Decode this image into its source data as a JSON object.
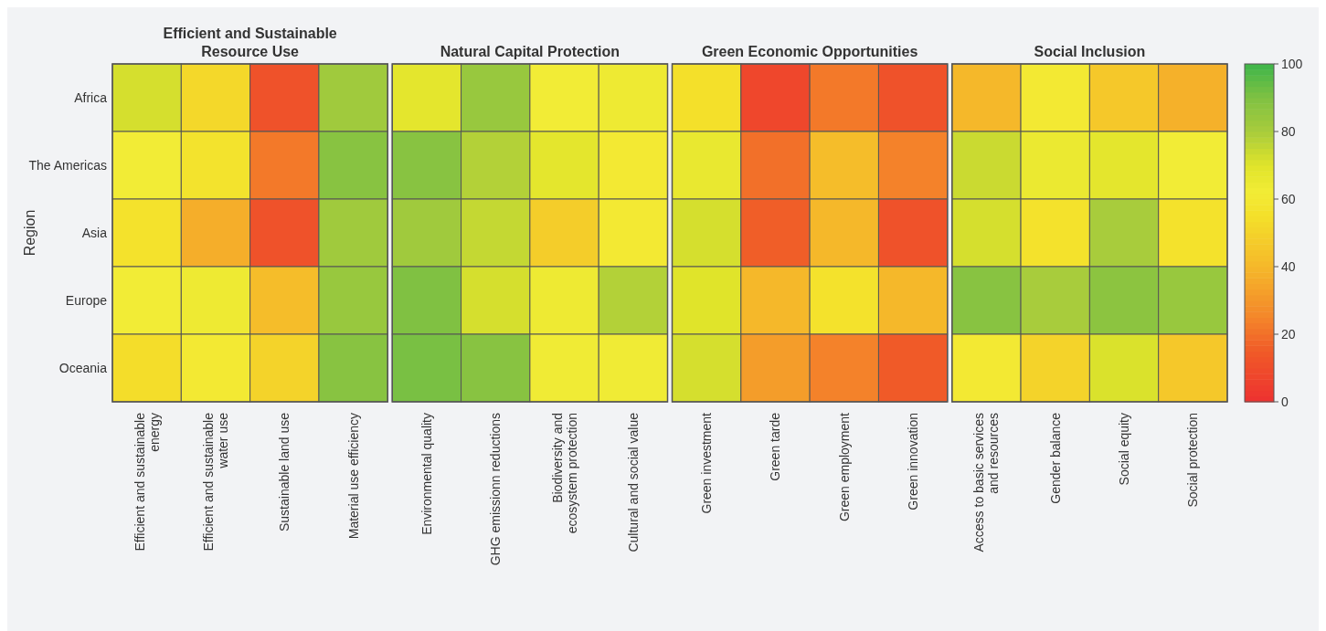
{
  "chart_data": {
    "type": "heatmap",
    "ylabel": "Region",
    "annotations": [
      "Efficient and Sustainable Resource Use",
      "Natural Capital Protection",
      "Green Economic Opportunities",
      "Social Inclusion"
    ],
    "categories": [
      "Efficient and sustainable energy",
      "Efficient and sustainable water use",
      "Sustainable land use",
      "Material use efficiency",
      "Environmental quality",
      "GHG emissionn reductions",
      "Biodiversity and ecosystem protection",
      "Cultural and social value",
      "Green investment",
      "Green tarde",
      "Green employment",
      "Green innovation",
      "Access to basic services and resources",
      "Gender balance",
      "Social equity",
      "Social protection"
    ],
    "y_categories": [
      "Africa",
      "The Americas",
      "Asia",
      "Europe",
      "Oceania"
    ],
    "cells": [
      [
        72,
        52,
        12,
        82,
        68,
        84,
        62,
        64,
        55,
        8,
        22,
        12,
        40,
        60,
        46,
        38
      ],
      [
        62,
        57,
        22,
        88,
        88,
        78,
        68,
        60,
        66,
        20,
        42,
        24,
        74,
        65,
        68,
        62
      ],
      [
        56,
        37,
        12,
        82,
        82,
        75,
        48,
        60,
        72,
        16,
        40,
        12,
        72,
        56,
        80,
        56
      ],
      [
        62,
        64,
        42,
        84,
        90,
        72,
        64,
        78,
        70,
        40,
        56,
        40,
        88,
        80,
        87,
        84
      ],
      [
        54,
        60,
        50,
        88,
        91,
        88,
        63,
        63,
        72,
        32,
        24,
        15,
        60,
        50,
        71,
        46
      ]
    ],
    "clim": [
      0,
      100
    ],
    "cticks": [
      0,
      20,
      40,
      60,
      80,
      100
    ]
  }
}
